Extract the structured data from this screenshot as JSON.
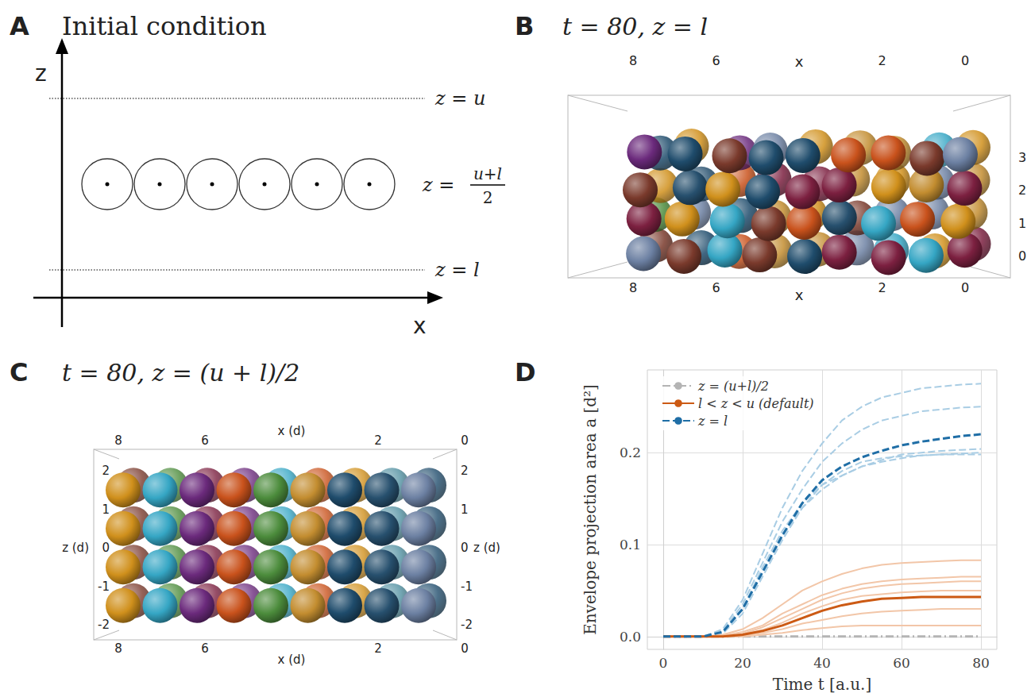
{
  "panels": [
    {
      "letter": "A",
      "title": "Initial condition",
      "axes": {
        "x": "x",
        "z": "z"
      },
      "levels": [
        {
          "label": "z = u"
        },
        {
          "label": {
            "prefix": "z =",
            "numerator": "u+l",
            "denominator": "2"
          }
        },
        {
          "label": "z = l"
        }
      ]
    },
    {
      "letter": "B",
      "title": "t = 80, z = l",
      "x_label": "x",
      "x_ticks": [
        8,
        6,
        2,
        0
      ],
      "z_ticks": [
        0,
        1,
        2,
        3
      ]
    },
    {
      "letter": "C",
      "title": "t = 80, z = (u + l)/2",
      "x_label": "x (d)",
      "z_label": "z (d)",
      "x_ticks": [
        8,
        6,
        2,
        0
      ],
      "z_ticks": [
        -2,
        -1,
        0,
        1,
        2
      ]
    }
  ],
  "chart_data": {
    "type": "line",
    "letter": "D",
    "x_label": "Time t [a.u.]",
    "y_label": "Envelope projection area a [d²]",
    "x": [
      0,
      5,
      10,
      15,
      20,
      25,
      30,
      35,
      40,
      45,
      50,
      55,
      60,
      65,
      70,
      75,
      80
    ],
    "xlim": [
      -4,
      84
    ],
    "xticks": [
      0,
      20,
      40,
      60,
      80
    ],
    "ylim": [
      -0.014,
      0.29
    ],
    "yticks": [
      {
        "value": 0,
        "label": "0.0"
      },
      0.1,
      0.2
    ],
    "grid": true,
    "legend": "upper left",
    "series": [
      {
        "color": "#a9cde4",
        "line_style": "dashed",
        "values": [
          0,
          0,
          0,
          0.008,
          0.04,
          0.09,
          0.14,
          0.18,
          0.21,
          0.235,
          0.25,
          0.26,
          0.265,
          0.27,
          0.272,
          0.274,
          0.275
        ]
      },
      {
        "color": "#a9cde4",
        "line_style": "dashed",
        "values": [
          0,
          0,
          0,
          0.006,
          0.035,
          0.08,
          0.125,
          0.16,
          0.19,
          0.21,
          0.225,
          0.235,
          0.24,
          0.245,
          0.247,
          0.249,
          0.25
        ]
      },
      {
        "color": "#a9cde4",
        "line_style": "dashed",
        "values": [
          0,
          0,
          0,
          0.004,
          0.03,
          0.07,
          0.11,
          0.14,
          0.16,
          0.175,
          0.185,
          0.19,
          0.194,
          0.197,
          0.198,
          0.199,
          0.2
        ]
      },
      {
        "color": "#a9cde4",
        "line_style": "dashed",
        "values": [
          0,
          0,
          0,
          0.003,
          0.025,
          0.065,
          0.105,
          0.14,
          0.165,
          0.18,
          0.19,
          0.194,
          0.196,
          0.197,
          0.198,
          0.198,
          0.198
        ]
      },
      {
        "color": "#a9cde4",
        "line_style": "dashed",
        "values": [
          0,
          0,
          0,
          0.005,
          0.03,
          0.075,
          0.115,
          0.145,
          0.165,
          0.175,
          0.185,
          0.192,
          0.198,
          0.2,
          0.202,
          0.203,
          0.204
        ]
      },
      {
        "color": "#f2c6a8",
        "line_style": "solid",
        "values": [
          0,
          0,
          0,
          0.002,
          0.008,
          0.02,
          0.035,
          0.05,
          0.06,
          0.068,
          0.074,
          0.078,
          0.08,
          0.081,
          0.082,
          0.083,
          0.083
        ]
      },
      {
        "color": "#f2c6a8",
        "line_style": "solid",
        "values": [
          0,
          0,
          0,
          0.001,
          0.005,
          0.012,
          0.025,
          0.035,
          0.045,
          0.052,
          0.057,
          0.06,
          0.062,
          0.063,
          0.064,
          0.065,
          0.065
        ]
      },
      {
        "color": "#f2c6a8",
        "line_style": "solid",
        "values": [
          0,
          0,
          0,
          0,
          0.003,
          0.01,
          0.02,
          0.03,
          0.04,
          0.047,
          0.052,
          0.055,
          0.057,
          0.058,
          0.059,
          0.06,
          0.06
        ]
      },
      {
        "color": "#f2c6a8",
        "line_style": "solid",
        "values": [
          0,
          0,
          0,
          0,
          0.002,
          0.007,
          0.015,
          0.025,
          0.033,
          0.04,
          0.044,
          0.046,
          0.048,
          0.049,
          0.05,
          0.05,
          0.05
        ]
      },
      {
        "color": "#f2c6a8",
        "line_style": "solid",
        "values": [
          0,
          0,
          0,
          0,
          0.001,
          0.004,
          0.008,
          0.014,
          0.018,
          0.022,
          0.025,
          0.027,
          0.028,
          0.029,
          0.03,
          0.03,
          0.03
        ]
      },
      {
        "color": "#f2c6a8",
        "line_style": "solid",
        "values": [
          0,
          0,
          0,
          0,
          0,
          0.002,
          0.004,
          0.007,
          0.009,
          0.011,
          0.012,
          0.012,
          0.012,
          0.012,
          0.012,
          0.012,
          0.012
        ]
      },
      {
        "name": "z = (u+l)/2",
        "color": "#b4b4b4",
        "line_style": "dashdot",
        "values": [
          0,
          0,
          0,
          0,
          0,
          0,
          0,
          0,
          0,
          0,
          0,
          0,
          0,
          0,
          0,
          0,
          0
        ]
      },
      {
        "name": "l < z < u (default)",
        "color": "#cc5a14",
        "line_style": "solid",
        "values": [
          0,
          0,
          0,
          0,
          0.002,
          0.006,
          0.012,
          0.02,
          0.028,
          0.034,
          0.038,
          0.041,
          0.042,
          0.043,
          0.043,
          0.043,
          0.043
        ]
      },
      {
        "name": "z = l",
        "color": "#1f6ea6",
        "line_style": "dashed",
        "values": [
          0,
          0,
          0,
          0.005,
          0.03,
          0.07,
          0.11,
          0.145,
          0.17,
          0.185,
          0.195,
          0.202,
          0.208,
          0.212,
          0.215,
          0.218,
          0.22
        ]
      }
    ]
  }
}
